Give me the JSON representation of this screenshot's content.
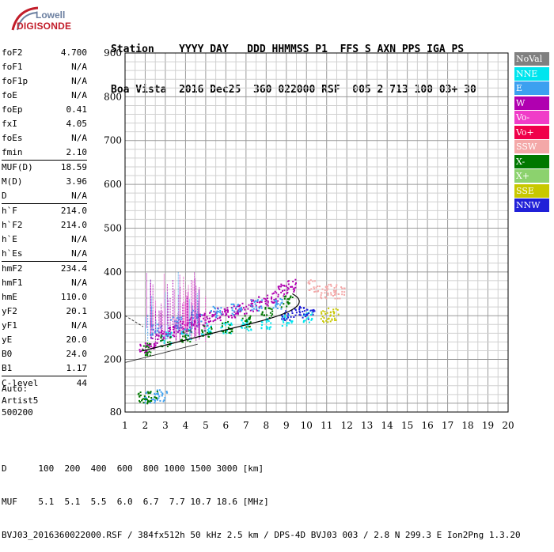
{
  "logo": {
    "line1": "Lowell",
    "line2": "DIGISONDE"
  },
  "header": {
    "row1": "Station    YYYY DAY   DDD HHMMSS P1  FFS S AXN PPS IGA PS",
    "row2": "Boa Vista  2016 Dec25  360 022000 RSF  005 2 713 100 03+ 30"
  },
  "params": [
    {
      "k": "foF2",
      "v": "4.700"
    },
    {
      "k": "foF1",
      "v": "N/A"
    },
    {
      "k": "foF1p",
      "v": "N/A"
    },
    {
      "k": "foE",
      "v": "N/A"
    },
    {
      "k": "foEp",
      "v": "0.41"
    },
    {
      "k": "fxI",
      "v": "4.05"
    },
    {
      "k": "foEs",
      "v": "N/A"
    },
    {
      "k": "fmin",
      "v": "2.10"
    },
    {
      "k": "MUF(D)",
      "v": "18.59"
    },
    {
      "k": "M(D)",
      "v": "3.96"
    },
    {
      "k": "D",
      "v": "N/A"
    },
    {
      "k": "h`F",
      "v": "214.0"
    },
    {
      "k": "h`F2",
      "v": "214.0"
    },
    {
      "k": "h`E",
      "v": "N/A"
    },
    {
      "k": "h`Es",
      "v": "N/A"
    },
    {
      "k": "hmF2",
      "v": "234.4"
    },
    {
      "k": "hmF1",
      "v": "N/A"
    },
    {
      "k": "hmE",
      "v": "110.0"
    },
    {
      "k": "yF2",
      "v": "20.1"
    },
    {
      "k": "yF1",
      "v": "N/A"
    },
    {
      "k": "yE",
      "v": "20.0"
    },
    {
      "k": "B0",
      "v": "24.0"
    },
    {
      "k": "B1",
      "v": "1.17"
    },
    {
      "k": "C-level",
      "v": "44"
    }
  ],
  "auto": {
    "line1": "Auto:",
    "line2": "Artist5",
    "line3": "500200"
  },
  "legend": [
    {
      "label": "NoVal",
      "color": "#808080"
    },
    {
      "label": "NNE",
      "color": "#00e5ee"
    },
    {
      "label": "E",
      "color": "#3ca0f0"
    },
    {
      "label": "W",
      "color": "#b000b0"
    },
    {
      "label": "Vo-",
      "color": "#f03cc8"
    },
    {
      "label": "Vo+",
      "color": "#f0004a"
    },
    {
      "label": "SSW",
      "color": "#f4a8a8"
    },
    {
      "label": "X-",
      "color": "#007800"
    },
    {
      "label": "X+",
      "color": "#8cd26e"
    },
    {
      "label": "SSE",
      "color": "#c8c800"
    },
    {
      "label": "NNW",
      "color": "#2020d8"
    }
  ],
  "footer": {
    "line1": "D      100  200  400  600  800 1000 1500 3000 [km]",
    "line2": "MUF    5.1  5.1  5.5  6.0  6.7  7.7 10.7 18.6 [MHz]",
    "line3": "BVJ03_2016360022000.RSF / 384fx512h 50 kHz 2.5 km / DPS-4D BVJ03 003 / 2.8 N 299.3 E Ion2Png 1.3.20"
  },
  "chart_data": {
    "type": "scatter",
    "xlabel": "",
    "ylabel": "",
    "xlim": [
      1,
      20
    ],
    "ylim": [
      80,
      900
    ],
    "x_ticks": [
      1,
      2,
      3,
      4,
      5,
      6,
      7,
      8,
      9,
      10,
      11,
      12,
      13,
      14,
      15,
      16,
      17,
      18,
      19,
      20
    ],
    "y_ticks": [
      80,
      200,
      300,
      400,
      500,
      600,
      700,
      800,
      900
    ],
    "grid": true,
    "legend_position": "right",
    "series": [
      {
        "name": "W",
        "points": [
          [
            1.9,
            225
          ],
          [
            2.3,
            240
          ],
          [
            2.8,
            255
          ],
          [
            3.3,
            265
          ],
          [
            3.8,
            275
          ],
          [
            4.3,
            285
          ],
          [
            4.8,
            292
          ],
          [
            5.3,
            300
          ],
          [
            5.8,
            305
          ],
          [
            6.3,
            310
          ],
          [
            6.8,
            318
          ],
          [
            7.3,
            325
          ],
          [
            7.8,
            335
          ],
          [
            8.3,
            345
          ],
          [
            8.8,
            360
          ],
          [
            9.2,
            370
          ]
        ]
      },
      {
        "name": "NNE",
        "points": [
          [
            3,
            250
          ],
          [
            4,
            260
          ],
          [
            5,
            270
          ],
          [
            6,
            275
          ],
          [
            7,
            280
          ],
          [
            8,
            285
          ],
          [
            9,
            292
          ],
          [
            10,
            300
          ]
        ]
      },
      {
        "name": "E",
        "points": [
          [
            2.5,
            270
          ],
          [
            3.5,
            285
          ],
          [
            4.5,
            300
          ],
          [
            5.5,
            310
          ],
          [
            6.5,
            318
          ],
          [
            7.5,
            325
          ],
          [
            8.5,
            330
          ],
          [
            2.2,
            115
          ],
          [
            2.8,
            120
          ]
        ]
      },
      {
        "name": "X-",
        "points": [
          [
            2,
            225
          ],
          [
            3,
            245
          ],
          [
            4,
            255
          ],
          [
            5,
            265
          ],
          [
            6,
            275
          ],
          [
            7,
            290
          ],
          [
            8,
            310
          ],
          [
            9,
            335
          ],
          [
            1.8,
            115
          ],
          [
            2.3,
            118
          ]
        ]
      },
      {
        "name": "SSW",
        "points": [
          [
            10.3,
            370
          ],
          [
            10.8,
            355
          ],
          [
            11.2,
            360
          ],
          [
            11.6,
            355
          ]
        ]
      },
      {
        "name": "SSE",
        "points": [
          [
            10.9,
            300
          ],
          [
            11.3,
            305
          ]
        ]
      },
      {
        "name": "NNW",
        "points": [
          [
            9,
            300
          ],
          [
            9.6,
            310
          ],
          [
            10.1,
            305
          ]
        ]
      }
    ]
  }
}
